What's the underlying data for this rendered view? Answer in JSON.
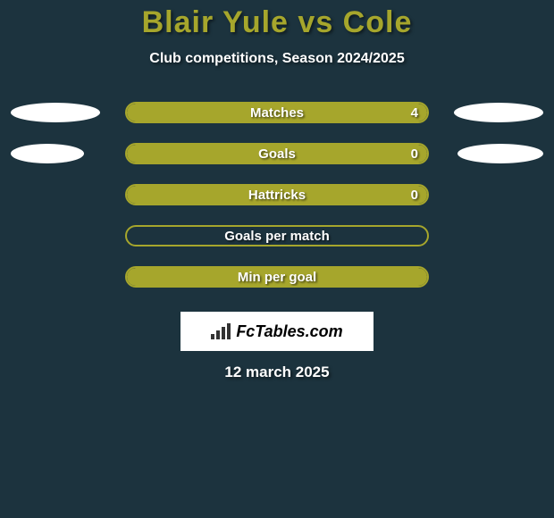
{
  "style": {
    "background_color": "#1c333e",
    "title_color": "#a6a62c",
    "text_color": "#ffffff",
    "subtitle_color": "#ffffff",
    "brand_bg": "#ffffff",
    "brand_text_color": "#000000",
    "brand_bars_color": "#333333",
    "title_fontsize": 34,
    "subtitle_fontsize": 16,
    "row_label_fontsize": 15,
    "date_fontsize": 17
  },
  "header": {
    "title": "Blair Yule vs Cole",
    "subtitle": "Club competitions, Season 2024/2025"
  },
  "rows": [
    {
      "label": "Matches",
      "value": "4",
      "show_value": true,
      "fill_pct": 100,
      "fill_color": "#a6a62c",
      "frame_color": "#a6a62c",
      "left_ellipse_w": 100,
      "left_ellipse_color": "#ffffff",
      "right_ellipse_w": 100,
      "right_ellipse_color": "#ffffff"
    },
    {
      "label": "Goals",
      "value": "0",
      "show_value": true,
      "fill_pct": 100,
      "fill_color": "#a6a62c",
      "frame_color": "#a6a62c",
      "left_ellipse_w": 82,
      "left_ellipse_color": "#ffffff",
      "right_ellipse_w": 96,
      "right_ellipse_color": "#ffffff"
    },
    {
      "label": "Hattricks",
      "value": "0",
      "show_value": true,
      "fill_pct": 100,
      "fill_color": "#a6a62c",
      "frame_color": "#a6a62c",
      "left_ellipse_w": 0,
      "left_ellipse_color": "#ffffff",
      "right_ellipse_w": 0,
      "right_ellipse_color": "#ffffff"
    },
    {
      "label": "Goals per match",
      "value": "",
      "show_value": false,
      "fill_pct": 0,
      "fill_color": "#a6a62c",
      "frame_color": "#a6a62c",
      "left_ellipse_w": 0,
      "left_ellipse_color": "#ffffff",
      "right_ellipse_w": 0,
      "right_ellipse_color": "#ffffff"
    },
    {
      "label": "Min per goal",
      "value": "",
      "show_value": false,
      "fill_pct": 100,
      "fill_color": "#a6a62c",
      "frame_color": "#a6a62c",
      "left_ellipse_w": 0,
      "left_ellipse_color": "#ffffff",
      "right_ellipse_w": 0,
      "right_ellipse_color": "#ffffff"
    }
  ],
  "brand": {
    "text": "FcTables.com"
  },
  "date": "12 march 2025"
}
